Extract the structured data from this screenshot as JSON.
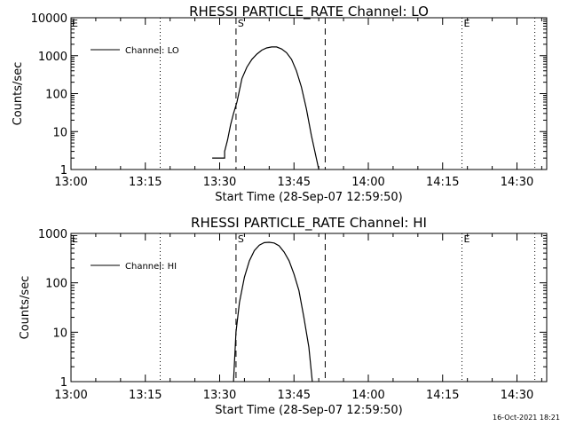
{
  "chart_data": [
    {
      "type": "line",
      "title": "RHESSI PARTICLE_RATE Channel: LO",
      "xlabel": "Start Time (28-Sep-07 12:59:50)",
      "ylabel": "Counts/sec",
      "yscale": "log",
      "xlim_minutes": [
        0,
        96
      ],
      "ylim": [
        1,
        10000
      ],
      "x_ticks": [
        "13:00",
        "13:15",
        "13:30",
        "13:45",
        "14:00",
        "14:15",
        "14:30"
      ],
      "y_ticks": [
        "1",
        "10",
        "100",
        "1000",
        "10000"
      ],
      "legend": "Channel: LO",
      "markers": {
        "S": "S",
        "E": "E",
        "left": "E"
      },
      "vlines": [
        {
          "t": 18.0,
          "style": "dotted"
        },
        {
          "t": 33.3,
          "style": "dashed"
        },
        {
          "t": 51.3,
          "style": "dashed"
        },
        {
          "t": 78.9,
          "style": "dotted"
        },
        {
          "t": 93.6,
          "style": "dotted"
        }
      ],
      "series": [
        {
          "name": "Channel: LO",
          "t": [
            28.5,
            31.0,
            31.0,
            31.6,
            32.2,
            32.8,
            33.5,
            34.5,
            35.5,
            36.5,
            37.5,
            38.5,
            39.5,
            40.5,
            41.5,
            42.5,
            43.5,
            44.5,
            45.5,
            46.5,
            47.5,
            48.5,
            49.5,
            50.0
          ],
          "v": [
            2,
            2,
            3,
            6,
            15,
            30,
            60,
            250,
            500,
            800,
            1100,
            1400,
            1600,
            1700,
            1700,
            1500,
            1200,
            800,
            400,
            150,
            40,
            8,
            2,
            1
          ]
        }
      ]
    },
    {
      "type": "line",
      "title": "RHESSI PARTICLE_RATE Channel: HI",
      "xlabel": "Start Time (28-Sep-07 12:59:50)",
      "ylabel": "Counts/sec",
      "yscale": "log",
      "xlim_minutes": [
        0,
        96
      ],
      "ylim": [
        1,
        1000
      ],
      "x_ticks": [
        "13:00",
        "13:15",
        "13:30",
        "13:45",
        "14:00",
        "14:15",
        "14:30"
      ],
      "y_ticks": [
        "1",
        "10",
        "100",
        "1000"
      ],
      "legend": "Channel: HI",
      "markers": {
        "S": "S",
        "E": "E",
        "left": "E"
      },
      "vlines": [
        {
          "t": 18.0,
          "style": "dotted"
        },
        {
          "t": 33.3,
          "style": "dashed"
        },
        {
          "t": 51.3,
          "style": "dashed"
        },
        {
          "t": 78.9,
          "style": "dotted"
        },
        {
          "t": 93.6,
          "style": "dotted"
        }
      ],
      "series": [
        {
          "name": "Channel: HI",
          "t": [
            32.8,
            33.3,
            34.0,
            35.0,
            36.0,
            37.0,
            38.0,
            39.0,
            40.0,
            41.0,
            42.0,
            43.0,
            44.0,
            45.0,
            46.0,
            47.0,
            48.0,
            48.7
          ],
          "v": [
            1,
            10,
            40,
            130,
            280,
            450,
            580,
            650,
            660,
            640,
            560,
            420,
            280,
            150,
            70,
            20,
            5,
            1
          ]
        }
      ]
    }
  ],
  "footer": "16-Oct-2021 18:21"
}
